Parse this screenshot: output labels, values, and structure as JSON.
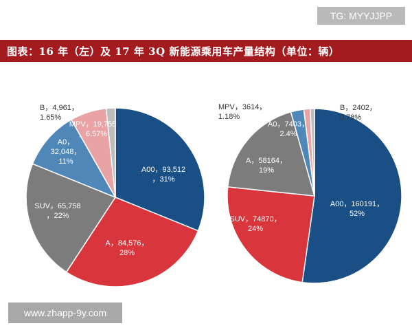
{
  "watermark_top": "TG: MYYJJPP",
  "title": "图表：16 年（左）及 17 年 3Q 新能源乘用车产量结构（单位：辆）",
  "watermark_bottom": "www.zhapp-9y.com",
  "chart_data": [
    {
      "type": "pie",
      "title": "16年",
      "slices": [
        {
          "name": "A00",
          "value": 93512,
          "percent": "31%",
          "color": "#1a4f86",
          "label_lines": [
            "A00，93,512",
            "，31%"
          ],
          "label_color": "#ffffff"
        },
        {
          "name": "A",
          "value": 84576,
          "percent": "28%",
          "color": "#d8363c",
          "label_lines": [
            "A，84,576，",
            "28%"
          ],
          "label_color": "#ffffff"
        },
        {
          "name": "SUV",
          "value": 65758,
          "percent": "22%",
          "color": "#7c7c7c",
          "label_lines": [
            "SUV，65,758",
            "，22%"
          ],
          "label_color": "#ffffff"
        },
        {
          "name": "A0",
          "value": 32048,
          "percent": "11%",
          "color": "#4f87b8",
          "label_lines": [
            "A0，",
            "32,048，",
            "11%"
          ],
          "label_color": "#ffffff"
        },
        {
          "name": "MPV",
          "value": 19755,
          "percent": "6.57%",
          "color": "#e9a3a5",
          "label_lines": [
            "MPV，19,755",
            "，6.57%"
          ],
          "label_color": "#ffffff"
        },
        {
          "name": "B",
          "value": 4961,
          "percent": "1.65%",
          "color": "#bdbdbd",
          "label_lines": [
            "B，4,961，",
            "1.65%"
          ],
          "label_color": "#333333"
        }
      ]
    },
    {
      "type": "pie",
      "title": "17年3Q",
      "slices": [
        {
          "name": "A00",
          "value": 160191,
          "percent": "52%",
          "color": "#1a4f86",
          "label_lines": [
            "A00，160191，",
            "52%"
          ],
          "label_color": "#ffffff"
        },
        {
          "name": "SUV",
          "value": 74870,
          "percent": "24%",
          "color": "#d8363c",
          "label_lines": [
            "SUV，74870，",
            "24%"
          ],
          "label_color": "#ffffff"
        },
        {
          "name": "A",
          "value": 58164,
          "percent": "19%",
          "color": "#7c7c7c",
          "label_lines": [
            "A，58164，",
            "19%"
          ],
          "label_color": "#ffffff"
        },
        {
          "name": "A0",
          "value": 7403,
          "percent": "2.4%",
          "color": "#4f87b8",
          "label_lines": [
            "A0，7403，",
            "2.4%"
          ],
          "label_color": "#ffffff"
        },
        {
          "name": "MPV",
          "value": 3614,
          "percent": "1.18%",
          "color": "#e9a3a5",
          "label_lines": [
            "MPV，3614，",
            "1.18%"
          ],
          "label_color": "#333333"
        },
        {
          "name": "B",
          "value": 2402,
          "percent": "0.78%",
          "color": "#bdbdbd",
          "label_lines": [
            "B，2402，",
            "0.78%"
          ],
          "label_color": "#333333"
        }
      ]
    }
  ]
}
